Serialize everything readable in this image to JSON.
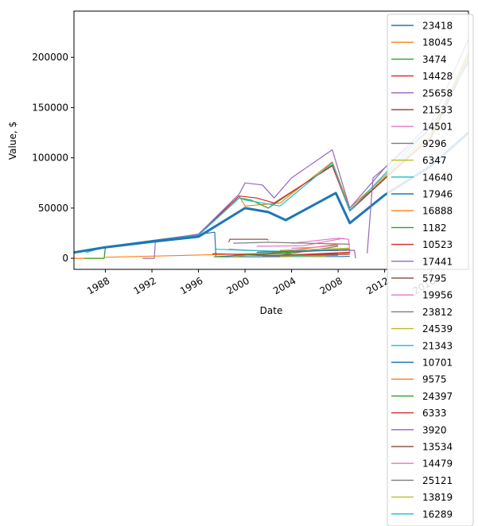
{
  "chart_data": {
    "type": "line",
    "xlabel": "Date",
    "ylabel": "Value, $",
    "x_tick_labels": [
      "1988",
      "1992",
      "1996",
      "2000",
      "2004",
      "2008",
      "2012",
      "2016"
    ],
    "x_tick_values": [
      1988,
      1992,
      1996,
      2000,
      2004,
      2008,
      2012,
      2016
    ],
    "y_tick_labels": [
      "0",
      "50000",
      "100000",
      "150000",
      "200000"
    ],
    "y_tick_values": [
      0,
      50000,
      100000,
      150000,
      200000
    ],
    "xlim": [
      1985.3,
      2019.2
    ],
    "ylim": [
      -11000,
      246000
    ],
    "grid": false,
    "legend_position": "right",
    "colors": [
      "#1f77b4",
      "#ff7f0e",
      "#2ca02c",
      "#d62728",
      "#9467bd",
      "#8c564b",
      "#e377c2",
      "#7f7f7f",
      "#bcbd22",
      "#17becf"
    ],
    "series": [
      {
        "name": "23418",
        "x": [
          1985.3,
          1988,
          1997.4,
          1997.5,
          2002,
          2008,
          2009,
          2009.1
        ],
        "y": [
          5800,
          11500,
          26000,
          1500,
          1600,
          1800,
          2000,
          null
        ]
      },
      {
        "name": "18045",
        "x": [
          1985.3,
          1987.9,
          1988,
          1992,
          1996,
          1999.5,
          2000,
          2003,
          2007.5,
          2009,
          2012,
          2016,
          2019.2
        ],
        "y": [
          0,
          0,
          11000,
          17000,
          23000,
          62000,
          52000,
          55000,
          96000,
          50000,
          82000,
          125000,
          205000
        ]
      },
      {
        "name": "3474",
        "x": [
          1986.2,
          1987.9,
          1988,
          1992,
          1996,
          1999.5,
          2000.5,
          2002,
          2007.5,
          2009,
          2012,
          2016,
          2019.2
        ],
        "y": [
          0,
          0,
          11000,
          17000,
          23000,
          60000,
          58000,
          50000,
          93000,
          48000,
          80000,
          122000,
          202000
        ]
      },
      {
        "name": "14428",
        "x": [
          1985.3,
          1988,
          1992,
          1996,
          1999.5,
          2001,
          2002.5,
          2007.5,
          2009,
          2012,
          2016,
          2019.2
        ],
        "y": [
          5600,
          11500,
          17000,
          24000,
          62000,
          60000,
          55000,
          92000,
          47000,
          79000,
          120000,
          198000
        ]
      },
      {
        "name": "25658",
        "x": [
          1991.2,
          1991.3,
          1992.2,
          1992.3,
          1996,
          1999.5,
          2000,
          2001.5,
          2002.5,
          2004,
          2007.5,
          2009,
          2012,
          2016,
          2019.2
        ],
        "y": [
          0,
          0,
          0,
          17500,
          24000,
          64000,
          75000,
          73000,
          60000,
          80000,
          108000,
          50000,
          90000,
          135000,
          218000
        ]
      },
      {
        "name": "21533",
        "x": [
          1998.6,
          1998.7,
          2001.9,
          2002
        ],
        "y": [
          16000,
          19000,
          19000,
          18000
        ]
      },
      {
        "name": "14501",
        "x": [
          2004,
          2008,
          2008.9,
          2009
        ],
        "y": [
          15000,
          20000,
          19000,
          5000
        ]
      },
      {
        "name": "9296",
        "x": [
          1999,
          2003,
          2008
        ],
        "y": [
          3000,
          2900,
          12000
        ]
      },
      {
        "name": "6347",
        "x": [
          1999,
          2004,
          2008.8
        ],
        "y": [
          2000,
          6000,
          10000
        ]
      },
      {
        "name": "14640",
        "x": [
          1986.3,
          1988,
          1992,
          1996,
          1999.5,
          2000,
          2003,
          2007.5,
          2009,
          2012,
          2016,
          2019.2
        ],
        "y": [
          5500,
          11400,
          17000,
          23000,
          60000,
          58000,
          52000,
          95000,
          47000,
          84000,
          130000,
          195000
        ]
      },
      {
        "name": "17946",
        "x": [
          1985.3,
          1988,
          1992,
          1996,
          2000,
          2002,
          2003.5,
          2007.8,
          2009,
          2012,
          2016,
          2019.2
        ],
        "y": [
          5800,
          11000,
          16500,
          21500,
          50000,
          46000,
          38000,
          65000,
          35000,
          63000,
          92000,
          125000
        ]
      },
      {
        "name": "16888",
        "x": [
          1988,
          2002,
          2008
        ],
        "y": [
          1000,
          5000,
          14000
        ]
      },
      {
        "name": "1182",
        "x": [
          1997.3,
          2002,
          2009
        ],
        "y": [
          1500,
          5000,
          9000
        ]
      },
      {
        "name": "10523",
        "x": [
          1997.2,
          2003,
          2009
        ],
        "y": [
          4500,
          3000,
          6000
        ]
      },
      {
        "name": "17441",
        "x": [
          1998.6,
          2002,
          2009.4,
          2009.5
        ],
        "y": [
          9000,
          7000,
          8000,
          0
        ]
      },
      {
        "name": "5795",
        "x": [
          2002,
          2004,
          2009
        ],
        "y": [
          2000,
          3000,
          4000
        ]
      },
      {
        "name": "19956",
        "x": [
          2001,
          2005,
          2008.5
        ],
        "y": [
          12000,
          12500,
          20000
        ]
      },
      {
        "name": "23812",
        "x": [
          1999,
          2002,
          2009
        ],
        "y": [
          15000,
          16000,
          14000
        ]
      },
      {
        "name": "24539",
        "x": [
          2003,
          2006,
          2009
        ],
        "y": [
          8000,
          9000,
          10000
        ]
      },
      {
        "name": "21343",
        "x": [
          1997.5,
          2000,
          2003
        ],
        "y": [
          9000,
          8000,
          7000
        ]
      },
      {
        "name": "10701",
        "x": [
          2001,
          2004,
          2008
        ],
        "y": [
          6000,
          7000,
          8000
        ]
      },
      {
        "name": "9575",
        "x": [
          2003,
          2006,
          2009
        ],
        "y": [
          3000,
          4000,
          5000
        ]
      },
      {
        "name": "24397",
        "x": [
          2000,
          2002,
          2004
        ],
        "y": [
          4000,
          4500,
          5000
        ]
      },
      {
        "name": "6333",
        "x": [
          2002,
          2005,
          2008
        ],
        "y": [
          2500,
          3500,
          4500
        ]
      },
      {
        "name": "3920",
        "x": [
          2010.5,
          2011,
          2016
        ],
        "y": [
          5000,
          80000,
          130000
        ]
      },
      {
        "name": "13534",
        "x": [
          2001,
          2003,
          2005
        ],
        "y": [
          3000,
          3200,
          3400
        ]
      },
      {
        "name": "14479",
        "x": [
          2004,
          2006,
          2008
        ],
        "y": [
          10000,
          11000,
          13000
        ]
      },
      {
        "name": "25121",
        "x": [
          2001.5,
          2004,
          2008
        ],
        "y": [
          2000,
          2500,
          3000
        ]
      },
      {
        "name": "13819",
        "x": [
          2003,
          2005,
          2007
        ],
        "y": [
          1500,
          1800,
          2100
        ]
      },
      {
        "name": "16289",
        "x": [
          2004,
          2006,
          2008
        ],
        "y": [
          2200,
          2600,
          3000
        ]
      }
    ]
  }
}
